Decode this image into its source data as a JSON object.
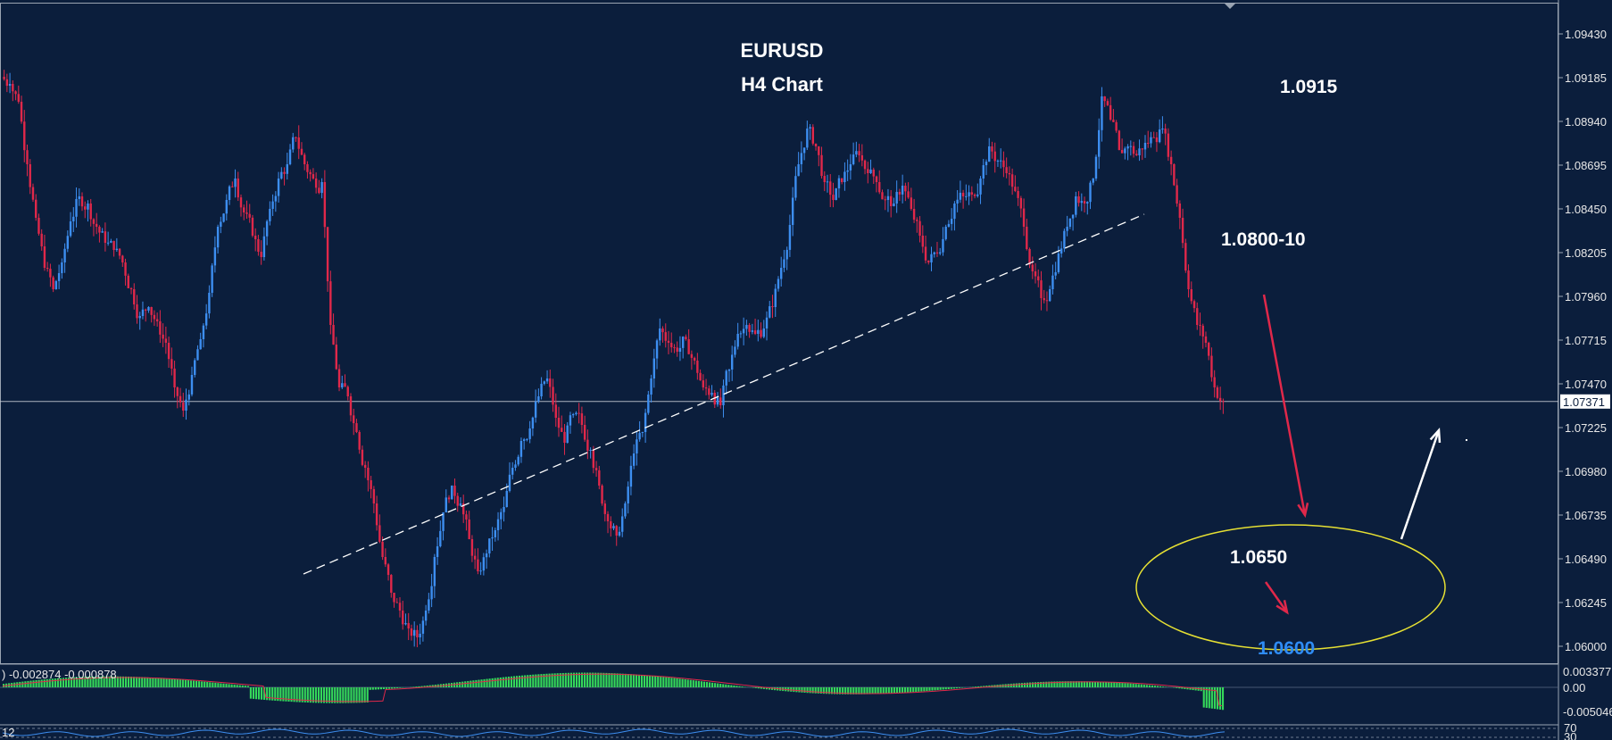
{
  "chart_data": {
    "type": "candlestick",
    "title": "EURUSD",
    "subtitle": "H4 Chart",
    "colors": {
      "background": "#0b1e3c",
      "up": "#3d8ef0",
      "down": "#e0284a",
      "grid": "#ffffff",
      "macd_hist": "#35d85a",
      "macd_signal": "#e0284a",
      "ellipse": "#e6e033",
      "label_blue": "#2f8cf5"
    },
    "y_axis": {
      "min": 1.0585,
      "max": 1.0955,
      "ticks": [
        "1.09430",
        "1.09185",
        "1.08940",
        "1.08695",
        "1.08450",
        "1.08205",
        "1.07960",
        "1.07715",
        "1.07470",
        "1.07225",
        "1.06980",
        "1.06735",
        "1.06490",
        "1.06245",
        "1.06000"
      ]
    },
    "current_price": {
      "label": "1.07371",
      "value": 1.07371
    },
    "closes": [
      1.0915,
      1.0905,
      1.087,
      1.084,
      1.0812,
      1.08,
      1.0815,
      1.0838,
      1.0852,
      1.0848,
      1.0835,
      1.0826,
      1.0822,
      1.0815,
      1.08,
      1.0785,
      1.079,
      1.0782,
      1.077,
      1.0745,
      1.0732,
      1.0752,
      1.0772,
      1.0798,
      1.0835,
      1.085,
      1.0862,
      1.0843,
      1.083,
      1.0818,
      1.0845,
      1.0862,
      1.087,
      1.0885,
      1.087,
      1.0862,
      1.086,
      1.078,
      1.0745,
      1.074,
      1.072,
      1.07,
      1.068,
      1.065,
      1.063,
      1.062,
      1.061,
      1.0605,
      1.062,
      1.065,
      1.0675,
      1.069,
      1.068,
      1.066,
      1.0642,
      1.0652,
      1.0665,
      1.0678,
      1.07,
      1.0715,
      1.0722,
      1.074,
      1.075,
      1.0728,
      1.0714,
      1.073,
      1.0724,
      1.071,
      1.069,
      1.067,
      1.0662,
      1.068,
      1.0708,
      1.072,
      1.075,
      1.0778,
      1.077,
      1.0765,
      1.0772,
      1.076,
      1.0745,
      1.0742,
      1.0735,
      1.0755,
      1.0775,
      1.078,
      1.0775,
      1.0778,
      1.079,
      1.0812,
      1.0836,
      1.087,
      1.089,
      1.088,
      1.086,
      1.085,
      1.086,
      1.087,
      1.0875,
      1.0865,
      1.086,
      1.085,
      1.0848,
      1.0858,
      1.0845,
      1.083,
      1.0815,
      1.082,
      1.0835,
      1.0848,
      1.0852,
      1.0853,
      1.0862,
      1.088,
      1.0872,
      1.0865,
      1.0855,
      1.0835,
      1.081,
      1.0795,
      1.08,
      1.082,
      1.0835,
      1.0852,
      1.0848,
      1.0862,
      1.0908,
      1.0895,
      1.0878,
      1.088,
      1.0875,
      1.0882,
      1.0885,
      1.089,
      1.087,
      1.084,
      1.08,
      1.078,
      1.077,
      1.0745,
      1.0737
    ],
    "trendline": {
      "start": [
        340,
        643
      ],
      "end": [
        1282,
        240
      ]
    },
    "annotations": [
      {
        "text": "1.0915",
        "color": "white"
      },
      {
        "text": "1.0800-10",
        "color": "white"
      },
      {
        "text": "1.0650",
        "color": "white"
      },
      {
        "text": "1.0600",
        "color": "blue"
      }
    ],
    "arrows": [
      {
        "color": "red",
        "from_price": 1.0797,
        "to_price": 1.06735
      },
      {
        "color": "red",
        "from_price": 1.0636,
        "to_price": 1.0619
      },
      {
        "color": "white",
        "from_price": 1.066,
        "to_price": 1.0721
      }
    ],
    "target_zone": {
      "center_price": 1.0633
    },
    "macd": {
      "label": ") -0.002874 -0.000878",
      "ticks": [
        "0.003377",
        "0.00",
        "-0.005046"
      ]
    },
    "rsi": {
      "label": "12",
      "ticks": [
        "70",
        "30"
      ]
    }
  }
}
